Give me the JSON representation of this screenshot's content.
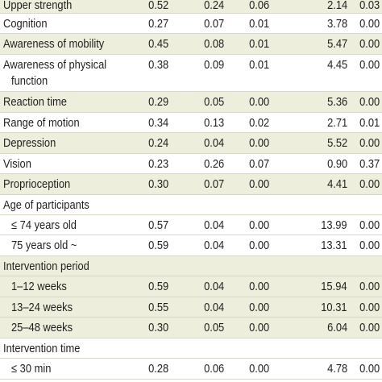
{
  "rows": [
    {
      "label": "Upper strength",
      "values": [
        "0.52",
        "0.24",
        "0.06",
        "2.14",
        "0.03"
      ],
      "shaded": true,
      "height": 23
    },
    {
      "label": "Cognition",
      "values": [
        "0.27",
        "0.07",
        "0.01",
        "3.78",
        "0.00"
      ],
      "shaded": false,
      "height": 25
    },
    {
      "label": "Awareness of mobility",
      "values": [
        "0.45",
        "0.08",
        "0.01",
        "5.47",
        "0.00"
      ],
      "shaded": true,
      "height": 26
    },
    {
      "label": "Awareness of physical",
      "label2": "function",
      "values": [
        "0.38",
        "0.09",
        "0.01",
        "4.45",
        "0.00"
      ],
      "shaded": false,
      "height": 46
    },
    {
      "label": "Reaction time",
      "values": [
        "0.29",
        "0.05",
        "0.00",
        "5.36",
        "0.00"
      ],
      "shaded": true,
      "height": 26
    },
    {
      "label": "Range of motion",
      "values": [
        "0.34",
        "0.13",
        "0.02",
        "2.71",
        "0.01"
      ],
      "shaded": false,
      "height": 25
    },
    {
      "label": "Depression",
      "values": [
        "0.24",
        "0.04",
        "0.00",
        "5.52",
        "0.00"
      ],
      "shaded": true,
      "height": 26
    },
    {
      "label": "Vision",
      "values": [
        "0.23",
        "0.26",
        "0.07",
        "0.90",
        "0.37"
      ],
      "shaded": false,
      "height": 25
    },
    {
      "label": "Proprioception",
      "values": [
        "0.30",
        "0.07",
        "0.00",
        "4.41",
        "0.00"
      ],
      "shaded": true,
      "height": 26
    },
    {
      "label": "Age of participants",
      "values": [
        "",
        "",
        "",
        "",
        ""
      ],
      "shaded": false,
      "height": 25
    },
    {
      "label": "≤ 74 years old",
      "indent": true,
      "values": [
        "0.57",
        "0.04",
        "0.00",
        "13.99",
        "0.00"
      ],
      "shaded": false,
      "height": 25
    },
    {
      "label": "75 years old ~",
      "indent": true,
      "values": [
        "0.59",
        "0.04",
        "0.00",
        "13.31",
        "0.00"
      ],
      "shaded": false,
      "height": 26
    },
    {
      "label": "Intervention period",
      "values": [
        "",
        "",
        "",
        "",
        ""
      ],
      "shaded": true,
      "height": 25
    },
    {
      "label": "1–12 weeks",
      "indent": true,
      "values": [
        "0.59",
        "0.04",
        "0.00",
        "15.94",
        "0.00"
      ],
      "shaded": true,
      "height": 26
    },
    {
      "label": "13–24 weeks",
      "indent": true,
      "values": [
        "0.55",
        "0.04",
        "0.00",
        "10.31",
        "0.00"
      ],
      "shaded": true,
      "height": 25
    },
    {
      "label": "25–48 weeks",
      "indent": true,
      "values": [
        "0.30",
        "0.05",
        "0.00",
        "6.04",
        "0.00"
      ],
      "shaded": true,
      "height": 26
    },
    {
      "label": "Intervention time",
      "values": [
        "",
        "",
        "",
        "",
        ""
      ],
      "shaded": false,
      "height": 25
    },
    {
      "label": "≤ 30 min",
      "indent": true,
      "values": [
        "0.28",
        "0.06",
        "0.00",
        "4.78",
        "0.00"
      ],
      "shaded": false,
      "height": 26
    }
  ]
}
